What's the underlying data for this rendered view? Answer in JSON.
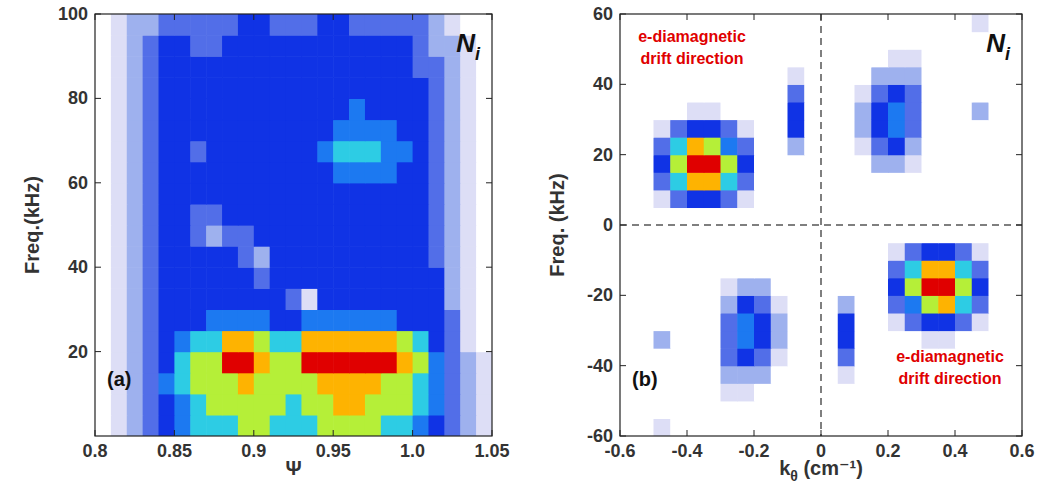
{
  "chart_data": [
    {
      "type": "heatmap",
      "color": "jet",
      "title": {
        "text": "N",
        "subscript": "i"
      },
      "panel": "(a)",
      "x_label": "Ψ",
      "y_label": "Freq.(kHz)",
      "xlim": [
        0.8,
        1.05
      ],
      "xticks": [
        0.8,
        0.85,
        0.9,
        0.95,
        {
          "value": 1,
          "label": "1.0"
        },
        1.05
      ],
      "ylim": [
        0,
        100
      ],
      "yticks": [
        20,
        40,
        60,
        80,
        100
      ],
      "zlim": [
        0,
        9
      ],
      "x": [
        0.805,
        0.815,
        0.825,
        0.835,
        0.845,
        0.855,
        0.865,
        0.875,
        0.885,
        0.895,
        0.905,
        0.915,
        0.925,
        0.935,
        0.945,
        0.955,
        0.965,
        0.975,
        0.985,
        0.995,
        1.005,
        1.015,
        1.025,
        1.035,
        1.045
      ],
      "y": [
        2.5,
        7.5,
        12.5,
        17.5,
        22.5,
        27.5,
        32.5,
        37.5,
        42.5,
        47.5,
        52.5,
        57.5,
        62.5,
        67.5,
        72.5,
        77.5,
        82.5,
        87.5,
        92.5,
        97.5
      ],
      "cells": [
        [
          0,
          1,
          2,
          3,
          4,
          5,
          6,
          6,
          6,
          7,
          7,
          6,
          6,
          6,
          7,
          7,
          7,
          7,
          6,
          6,
          5,
          4,
          3,
          2,
          1
        ],
        [
          0,
          1,
          2,
          3,
          4,
          5,
          6,
          7,
          7,
          7,
          7,
          7,
          6,
          7,
          7,
          8,
          8,
          7,
          7,
          7,
          6,
          5,
          3,
          2,
          1
        ],
        [
          0,
          1,
          2,
          3,
          5,
          6,
          7,
          7,
          7,
          8,
          7,
          7,
          7,
          7,
          8,
          8,
          8,
          8,
          7,
          7,
          6,
          5,
          3,
          2,
          1
        ],
        [
          0,
          1,
          2,
          3,
          4,
          6,
          7,
          7,
          9,
          9,
          8,
          7,
          7,
          9,
          9,
          9,
          9,
          9,
          9,
          8,
          7,
          5,
          3,
          2,
          1
        ],
        [
          0,
          1,
          2,
          3,
          4,
          5,
          6,
          6,
          8,
          8,
          7,
          6,
          6,
          8,
          8,
          8,
          8,
          8,
          8,
          7,
          6,
          4,
          3,
          1,
          0
        ],
        [
          0,
          1,
          2,
          3,
          4,
          4,
          4,
          5,
          5,
          5,
          5,
          4,
          4,
          5,
          5,
          5,
          5,
          5,
          5,
          4,
          4,
          4,
          3,
          1,
          0
        ],
        [
          0,
          1,
          2,
          3,
          4,
          4,
          4,
          4,
          4,
          4,
          4,
          4,
          3,
          1,
          4,
          4,
          4,
          4,
          4,
          4,
          4,
          4,
          2,
          1,
          0
        ],
        [
          0,
          1,
          2,
          3,
          4,
          4,
          4,
          4,
          4,
          4,
          3,
          4,
          4,
          4,
          4,
          4,
          4,
          4,
          4,
          4,
          4,
          4,
          2,
          1,
          0
        ],
        [
          0,
          1,
          2,
          3,
          4,
          4,
          4,
          4,
          4,
          3,
          2,
          4,
          4,
          4,
          4,
          4,
          4,
          4,
          4,
          4,
          4,
          3,
          2,
          1,
          0
        ],
        [
          0,
          1,
          2,
          3,
          4,
          4,
          3,
          2,
          3,
          3,
          4,
          4,
          4,
          4,
          4,
          4,
          4,
          4,
          4,
          4,
          4,
          3,
          2,
          1,
          0
        ],
        [
          0,
          1,
          2,
          3,
          4,
          4,
          3,
          3,
          4,
          4,
          4,
          4,
          4,
          4,
          4,
          4,
          4,
          4,
          4,
          4,
          4,
          3,
          2,
          1,
          0
        ],
        [
          0,
          1,
          2,
          3,
          4,
          4,
          4,
          4,
          4,
          4,
          4,
          4,
          4,
          4,
          4,
          4,
          4,
          4,
          4,
          4,
          4,
          3,
          2,
          1,
          0
        ],
        [
          0,
          1,
          2,
          3,
          4,
          4,
          4,
          4,
          4,
          4,
          4,
          4,
          4,
          4,
          4,
          5,
          5,
          5,
          5,
          4,
          4,
          3,
          2,
          1,
          0
        ],
        [
          0,
          1,
          2,
          3,
          4,
          4,
          3,
          4,
          4,
          4,
          4,
          4,
          4,
          4,
          5,
          6,
          6,
          6,
          5,
          5,
          4,
          3,
          2,
          1,
          0
        ],
        [
          0,
          1,
          2,
          3,
          4,
          4,
          4,
          4,
          4,
          4,
          4,
          4,
          4,
          4,
          4,
          5,
          5,
          5,
          5,
          4,
          4,
          3,
          2,
          1,
          0
        ],
        [
          0,
          1,
          2,
          3,
          4,
          4,
          4,
          4,
          4,
          4,
          4,
          4,
          4,
          4,
          4,
          4,
          5,
          4,
          4,
          4,
          4,
          3,
          2,
          1,
          0
        ],
        [
          0,
          1,
          2,
          3,
          4,
          4,
          4,
          4,
          4,
          4,
          4,
          4,
          4,
          4,
          4,
          4,
          4,
          4,
          4,
          4,
          4,
          3,
          2,
          1,
          0
        ],
        [
          0,
          1,
          2,
          3,
          4,
          4,
          4,
          4,
          4,
          4,
          4,
          4,
          4,
          4,
          4,
          4,
          4,
          4,
          4,
          4,
          3,
          3,
          2,
          1,
          0
        ],
        [
          0,
          1,
          2,
          3,
          4,
          4,
          3,
          3,
          4,
          4,
          4,
          4,
          4,
          4,
          4,
          4,
          4,
          4,
          4,
          4,
          3,
          2,
          2,
          1,
          0
        ],
        [
          0,
          1,
          2,
          2,
          3,
          3,
          3,
          3,
          3,
          4,
          4,
          3,
          3,
          3,
          4,
          4,
          3,
          3,
          3,
          3,
          3,
          2,
          1,
          0,
          0
        ]
      ]
    },
    {
      "type": "heatmap",
      "color": "jet",
      "title": {
        "text": "N",
        "subscript": "i"
      },
      "panel": "(b)",
      "x_label": {
        "text": "k",
        "subscript": "θ",
        "after": " (cm⁻¹)"
      },
      "y_label": "Freq. (kHz)",
      "annotations": [
        [
          "e-diamagnetic",
          "drift direction"
        ],
        [
          "e-diamagnetic",
          "drift direction"
        ]
      ],
      "reference_lines": {
        "x": 0,
        "y": 0
      },
      "xlim": [
        -0.6,
        0.6
      ],
      "xticks": [
        -0.6,
        -0.4,
        -0.2,
        0,
        0.2,
        0.4,
        0.6
      ],
      "ylim": [
        -60,
        60
      ],
      "yticks": [
        -60,
        -40,
        -20,
        0,
        20,
        40,
        60
      ],
      "zlim": [
        0,
        9
      ],
      "x": [
        -0.575,
        -0.525,
        -0.475,
        -0.425,
        -0.375,
        -0.325,
        -0.275,
        -0.225,
        -0.175,
        -0.125,
        -0.075,
        -0.025,
        0.025,
        0.075,
        0.125,
        0.175,
        0.225,
        0.275,
        0.325,
        0.375,
        0.425,
        0.475,
        0.525,
        0.575
      ],
      "y": [
        -57.5,
        -52.5,
        -47.5,
        -42.5,
        -37.5,
        -32.5,
        -27.5,
        -22.5,
        -17.5,
        -12.5,
        -7.5,
        -2.5,
        2.5,
        7.5,
        12.5,
        17.5,
        22.5,
        27.5,
        32.5,
        37.5,
        42.5,
        47.5,
        52.5,
        57.5
      ],
      "cells": [
        [
          0,
          0,
          1,
          0,
          0,
          0,
          0,
          0,
          0,
          0,
          0,
          0,
          0,
          0,
          0,
          0,
          0,
          0,
          0,
          0,
          0,
          0,
          0,
          0
        ],
        [
          0,
          0,
          0,
          0,
          0,
          0,
          0,
          0,
          0,
          0,
          0,
          0,
          0,
          0,
          0,
          0,
          0,
          0,
          0,
          0,
          0,
          0,
          0,
          0
        ],
        [
          0,
          0,
          0,
          0,
          0,
          0,
          1,
          1,
          0,
          0,
          0,
          0,
          0,
          0,
          0,
          0,
          0,
          0,
          0,
          0,
          0,
          0,
          0,
          0
        ],
        [
          0,
          0,
          0,
          0,
          0,
          0,
          2,
          2,
          2,
          0,
          0,
          0,
          0,
          1,
          0,
          0,
          0,
          0,
          0,
          0,
          0,
          0,
          0,
          0
        ],
        [
          0,
          0,
          0,
          0,
          0,
          0,
          3,
          4,
          3,
          1,
          0,
          0,
          0,
          3,
          0,
          0,
          0,
          0,
          0,
          0,
          0,
          0,
          0,
          0
        ],
        [
          0,
          0,
          2,
          0,
          0,
          0,
          3,
          5,
          4,
          2,
          0,
          0,
          0,
          4,
          0,
          0,
          0,
          0,
          1,
          1,
          0,
          0,
          0,
          0
        ],
        [
          0,
          0,
          0,
          0,
          0,
          0,
          3,
          5,
          4,
          2,
          0,
          0,
          0,
          4,
          0,
          0,
          1,
          3,
          4,
          4,
          3,
          1,
          0,
          0
        ],
        [
          0,
          0,
          0,
          0,
          0,
          0,
          2,
          4,
          3,
          1,
          0,
          0,
          0,
          2,
          0,
          0,
          3,
          5,
          7,
          8,
          6,
          3,
          0,
          0
        ],
        [
          0,
          0,
          0,
          0,
          0,
          0,
          1,
          2,
          2,
          0,
          0,
          0,
          0,
          0,
          0,
          0,
          4,
          7,
          9,
          9,
          7,
          4,
          0,
          0
        ],
        [
          0,
          0,
          0,
          0,
          0,
          0,
          0,
          0,
          0,
          0,
          0,
          0,
          0,
          0,
          0,
          0,
          3,
          6,
          8,
          8,
          6,
          3,
          0,
          0
        ],
        [
          0,
          0,
          0,
          0,
          0,
          0,
          0,
          0,
          0,
          0,
          0,
          0,
          0,
          0,
          0,
          0,
          1,
          3,
          4,
          4,
          3,
          1,
          0,
          0
        ],
        [
          0,
          0,
          0,
          0,
          0,
          0,
          0,
          0,
          0,
          0,
          0,
          0,
          0,
          0,
          0,
          0,
          0,
          0,
          0,
          0,
          0,
          0,
          0,
          0
        ],
        [
          0,
          0,
          0,
          0,
          0,
          0,
          0,
          0,
          0,
          0,
          0,
          0,
          0,
          0,
          0,
          0,
          0,
          0,
          0,
          0,
          0,
          0,
          0,
          0
        ],
        [
          0,
          0,
          1,
          3,
          4,
          4,
          3,
          1,
          0,
          0,
          0,
          0,
          0,
          0,
          0,
          0,
          0,
          0,
          0,
          0,
          0,
          0,
          0,
          0
        ],
        [
          0,
          0,
          3,
          6,
          8,
          8,
          6,
          3,
          0,
          0,
          0,
          0,
          0,
          0,
          0,
          0,
          0,
          0,
          0,
          0,
          0,
          0,
          0,
          0
        ],
        [
          0,
          0,
          4,
          7,
          9,
          9,
          7,
          4,
          0,
          0,
          0,
          0,
          0,
          0,
          0,
          2,
          2,
          1,
          0,
          0,
          0,
          0,
          0,
          0
        ],
        [
          0,
          0,
          3,
          6,
          8,
          7,
          5,
          3,
          0,
          0,
          2,
          0,
          0,
          0,
          1,
          3,
          4,
          2,
          0,
          0,
          0,
          0,
          0,
          0
        ],
        [
          0,
          0,
          1,
          3,
          4,
          4,
          3,
          1,
          0,
          0,
          4,
          0,
          0,
          0,
          2,
          4,
          5,
          3,
          0,
          0,
          0,
          0,
          0,
          0
        ],
        [
          0,
          0,
          0,
          0,
          1,
          1,
          0,
          0,
          0,
          0,
          4,
          0,
          0,
          0,
          2,
          4,
          5,
          3,
          0,
          0,
          0,
          2,
          0,
          0
        ],
        [
          0,
          0,
          0,
          0,
          0,
          0,
          0,
          0,
          0,
          0,
          3,
          0,
          0,
          0,
          1,
          3,
          4,
          3,
          0,
          0,
          0,
          0,
          0,
          0
        ],
        [
          0,
          0,
          0,
          0,
          0,
          0,
          0,
          0,
          0,
          0,
          1,
          0,
          0,
          0,
          0,
          2,
          2,
          2,
          0,
          0,
          0,
          0,
          0,
          0
        ],
        [
          0,
          0,
          0,
          0,
          0,
          0,
          0,
          0,
          0,
          0,
          0,
          0,
          0,
          0,
          0,
          0,
          1,
          1,
          0,
          0,
          0,
          0,
          0,
          0
        ],
        [
          0,
          0,
          0,
          0,
          0,
          0,
          0,
          0,
          0,
          0,
          0,
          0,
          0,
          0,
          0,
          0,
          0,
          0,
          0,
          0,
          0,
          0,
          0,
          0
        ],
        [
          0,
          0,
          0,
          0,
          0,
          0,
          0,
          0,
          0,
          0,
          0,
          0,
          0,
          0,
          0,
          0,
          0,
          0,
          0,
          0,
          0,
          1,
          0,
          0
        ]
      ]
    }
  ]
}
